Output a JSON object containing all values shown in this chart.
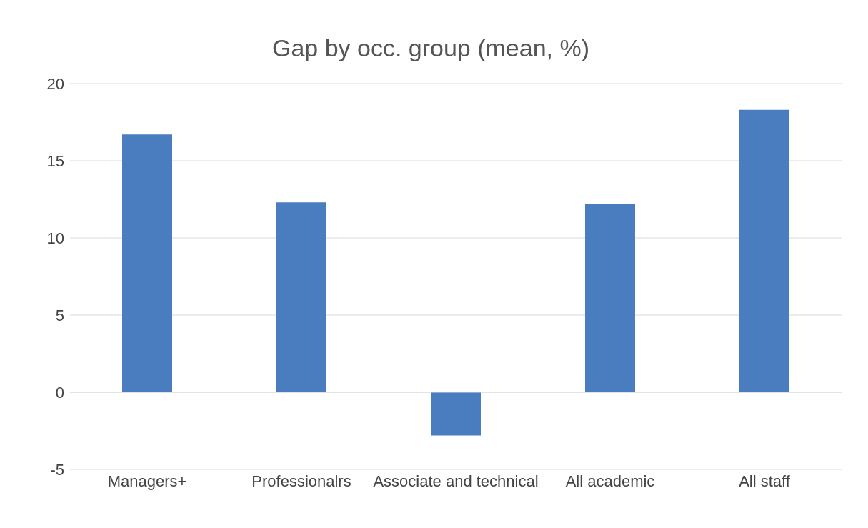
{
  "chart_data": {
    "type": "bar",
    "title": "Gap by occ. group (mean, %)",
    "categories": [
      "Managers+",
      "Professionalrs",
      "Associate and technical",
      "All academic",
      "All staff"
    ],
    "values": [
      16.7,
      12.3,
      -2.8,
      12.2,
      18.3
    ],
    "color": "#4a7dc0",
    "ylim": [
      -5,
      20
    ],
    "yticks": [
      -5,
      0,
      5,
      10,
      15,
      20
    ],
    "grid": "y"
  }
}
